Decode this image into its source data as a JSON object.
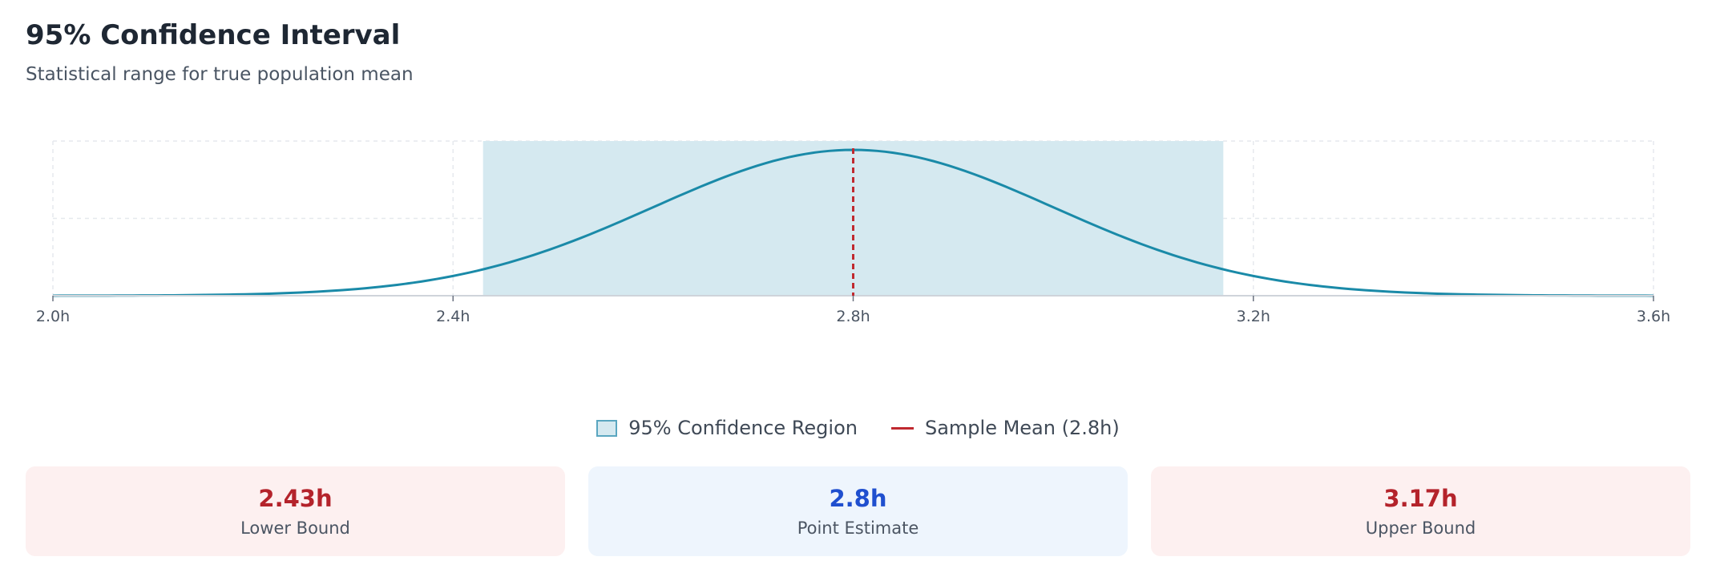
{
  "header": {
    "title": "95% Confidence Interval",
    "subtitle": "Statistical range for true population mean"
  },
  "chart_data": {
    "type": "area",
    "title": "",
    "xlabel": "",
    "ylabel": "",
    "x_ticks": [
      "2.0h",
      "2.4h",
      "2.8h",
      "3.2h",
      "3.6h"
    ],
    "xlim": [
      2.0,
      3.6
    ],
    "grid": true,
    "distribution": {
      "mean": 2.8,
      "sd": 0.2
    },
    "confidence_region": {
      "lower": 2.43,
      "upper": 3.17
    },
    "mean_line": 2.8,
    "colors": {
      "curve": "#1a8aa8",
      "region": "#d5e9f0",
      "mean": "#c0292f"
    }
  },
  "legend": {
    "region_label": "95% Confidence Region",
    "mean_label": "Sample Mean (2.8h)"
  },
  "cards": [
    {
      "value": "2.43h",
      "label": "Lower Bound"
    },
    {
      "value": "2.8h",
      "label": "Point Estimate"
    },
    {
      "value": "3.17h",
      "label": "Upper Bound"
    }
  ]
}
